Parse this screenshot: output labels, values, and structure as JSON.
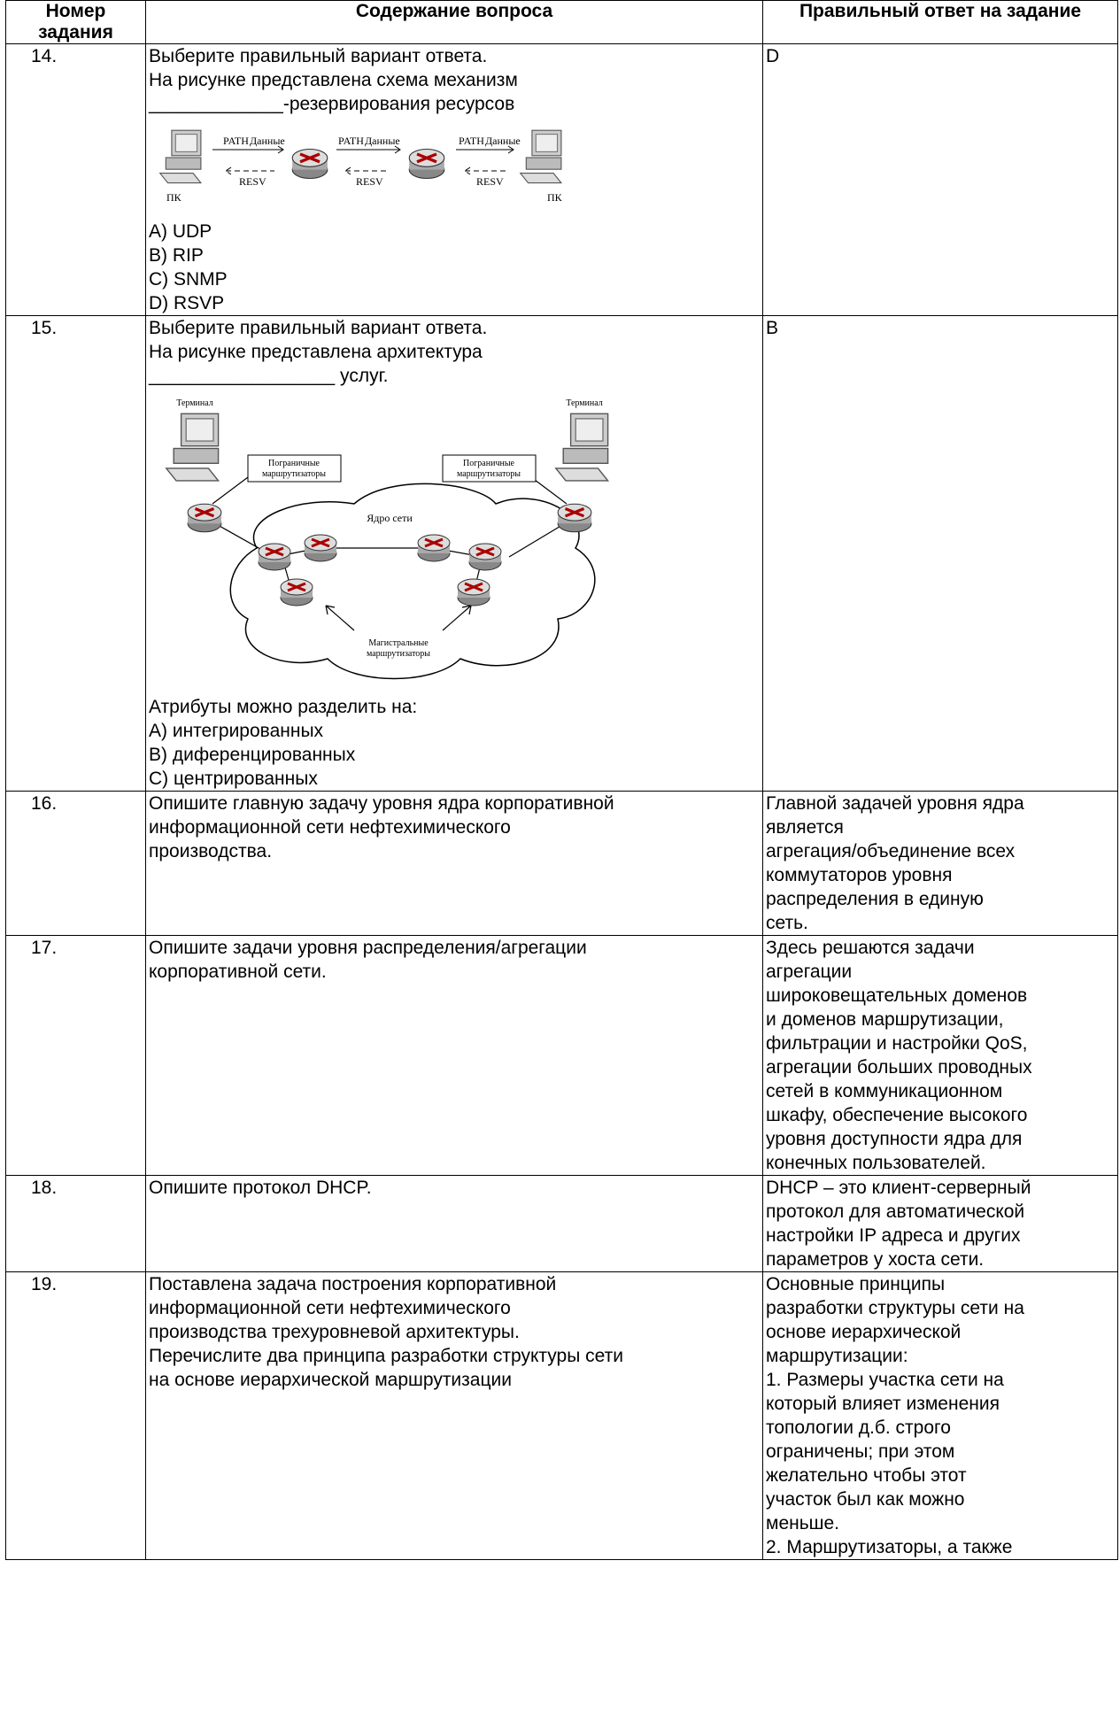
{
  "table": {
    "header": [
      "Номер задания",
      "Содержание вопроса",
      "Правильный ответ на задание"
    ],
    "rows": [
      {
        "number": "14.",
        "question": [
          "Выберите правильный вариант ответа.",
          "На рисунке представлена схема механизм",
          "_____________-резервирования ресурсов"
        ],
        "figure": {
          "labels": [
            "PATH",
            "Данные",
            "RESV",
            "ПК"
          ]
        },
        "options": [
          "A) UDP",
          "B) RIP",
          "C) SNMP",
          "D) RSVP"
        ],
        "answer": [
          "D"
        ]
      },
      {
        "number": "15.",
        "question": [
          "Выберите правильный вариант ответа.",
          "На рисунке представлена архитектура",
          "__________________ услуг."
        ],
        "figure": {
          "labels": [
            "Терминал",
            "Пограничные",
            "маршрутизаторы",
            "Ядро сети",
            "Магистральные"
          ]
        },
        "options": [
          "Атрибуты можно разделить на:",
          "A) интегрированных",
          "B) диференцированных",
          "C) центрированных"
        ],
        "answer": [
          "B"
        ]
      },
      {
        "number": "16.",
        "question": [
          "Опишите главную задачу уровня ядра корпоративной",
          "информационной сети нефтехимического",
          "производства."
        ],
        "answer": [
          "Главной задачей уровня ядра",
          "является",
          "агрегация/объединение всех",
          "коммутаторов уровня",
          "распределения в единую",
          "сеть."
        ]
      },
      {
        "number": "17.",
        "question": [
          "Опишите задачи уровня распределения/агрегации",
          "корпоративной сети."
        ],
        "answer": [
          "Здесь решаются задачи",
          "агрегации",
          "широковещательных доменов",
          "и доменов маршрутизации,",
          "фильтрации и настройки QoS,",
          "агрегации больших проводных",
          "сетей в коммуникационном",
          "шкафу, обеспечение высокого",
          "уровня доступности ядра для",
          "конечных пользователей."
        ]
      },
      {
        "number": "18.",
        "question": [
          "Опишите протокол DHCP."
        ],
        "answer": [
          "DHCP – это клиент-серверный",
          "протокол для автоматической",
          "настройки IP адреса и других",
          "параметров у хоста сети."
        ]
      },
      {
        "number": "19.",
        "question": [
          "Поставлена задача построения корпоративной",
          "информационной сети нефтехимического",
          "производства трехуровневой архитектуры.",
          "Перечислите два принципа разработки структуры сети",
          "на основе иерархической маршрутизации"
        ],
        "answer": [
          "Основные принципы",
          "разработки структуры сети на",
          "основе иерархической",
          "маршрутизации:",
          "1. Размеры участка сети на",
          "который влияет изменения",
          "топологии д.б. строго",
          "ограничены; при этом",
          "желательно чтобы этот",
          "участок был как можно",
          "меньше.",
          "2. Маршрутизаторы, а также"
        ]
      }
    ]
  }
}
